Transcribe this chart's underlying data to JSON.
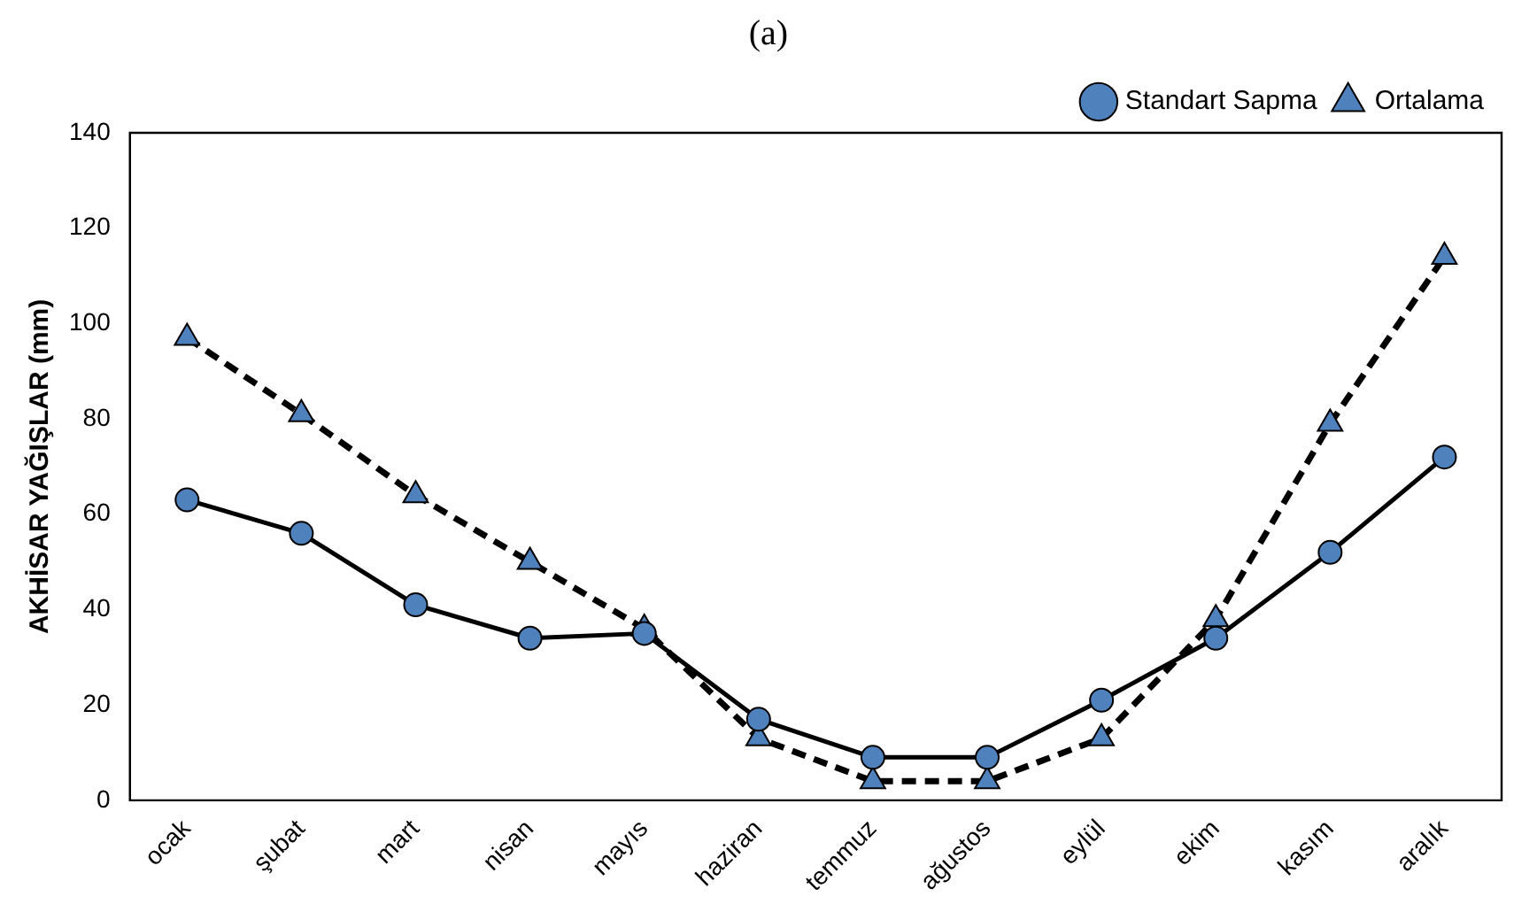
{
  "chart_data": {
    "type": "line",
    "title": "(a)",
    "ylabel": "AKHİSAR YAĞIŞLAR (mm)",
    "categories": [
      "ocak",
      "şubat",
      "mart",
      "nisan",
      "mayıs",
      "haziran",
      "temmuz",
      "ağustos",
      "eylül",
      "ekim",
      "kasım",
      "aralık"
    ],
    "series": [
      {
        "name": "Ortalama",
        "color": "#4f81bd",
        "line_style": "dashed",
        "marker": "triangle",
        "values": [
          97,
          81,
          64,
          50,
          36,
          13,
          4,
          4,
          13,
          38,
          79,
          114
        ]
      },
      {
        "name": "Standart Sapma",
        "color": "#4f81bd",
        "line_style": "solid",
        "marker": "circle",
        "values": [
          63,
          56,
          41,
          34,
          35,
          17,
          9,
          9,
          21,
          34,
          52,
          72
        ]
      }
    ],
    "ylim": [
      0,
      140
    ],
    "yticks": [
      0,
      20,
      40,
      60,
      80,
      100,
      120,
      140
    ],
    "grid": false,
    "legend": "top right"
  }
}
